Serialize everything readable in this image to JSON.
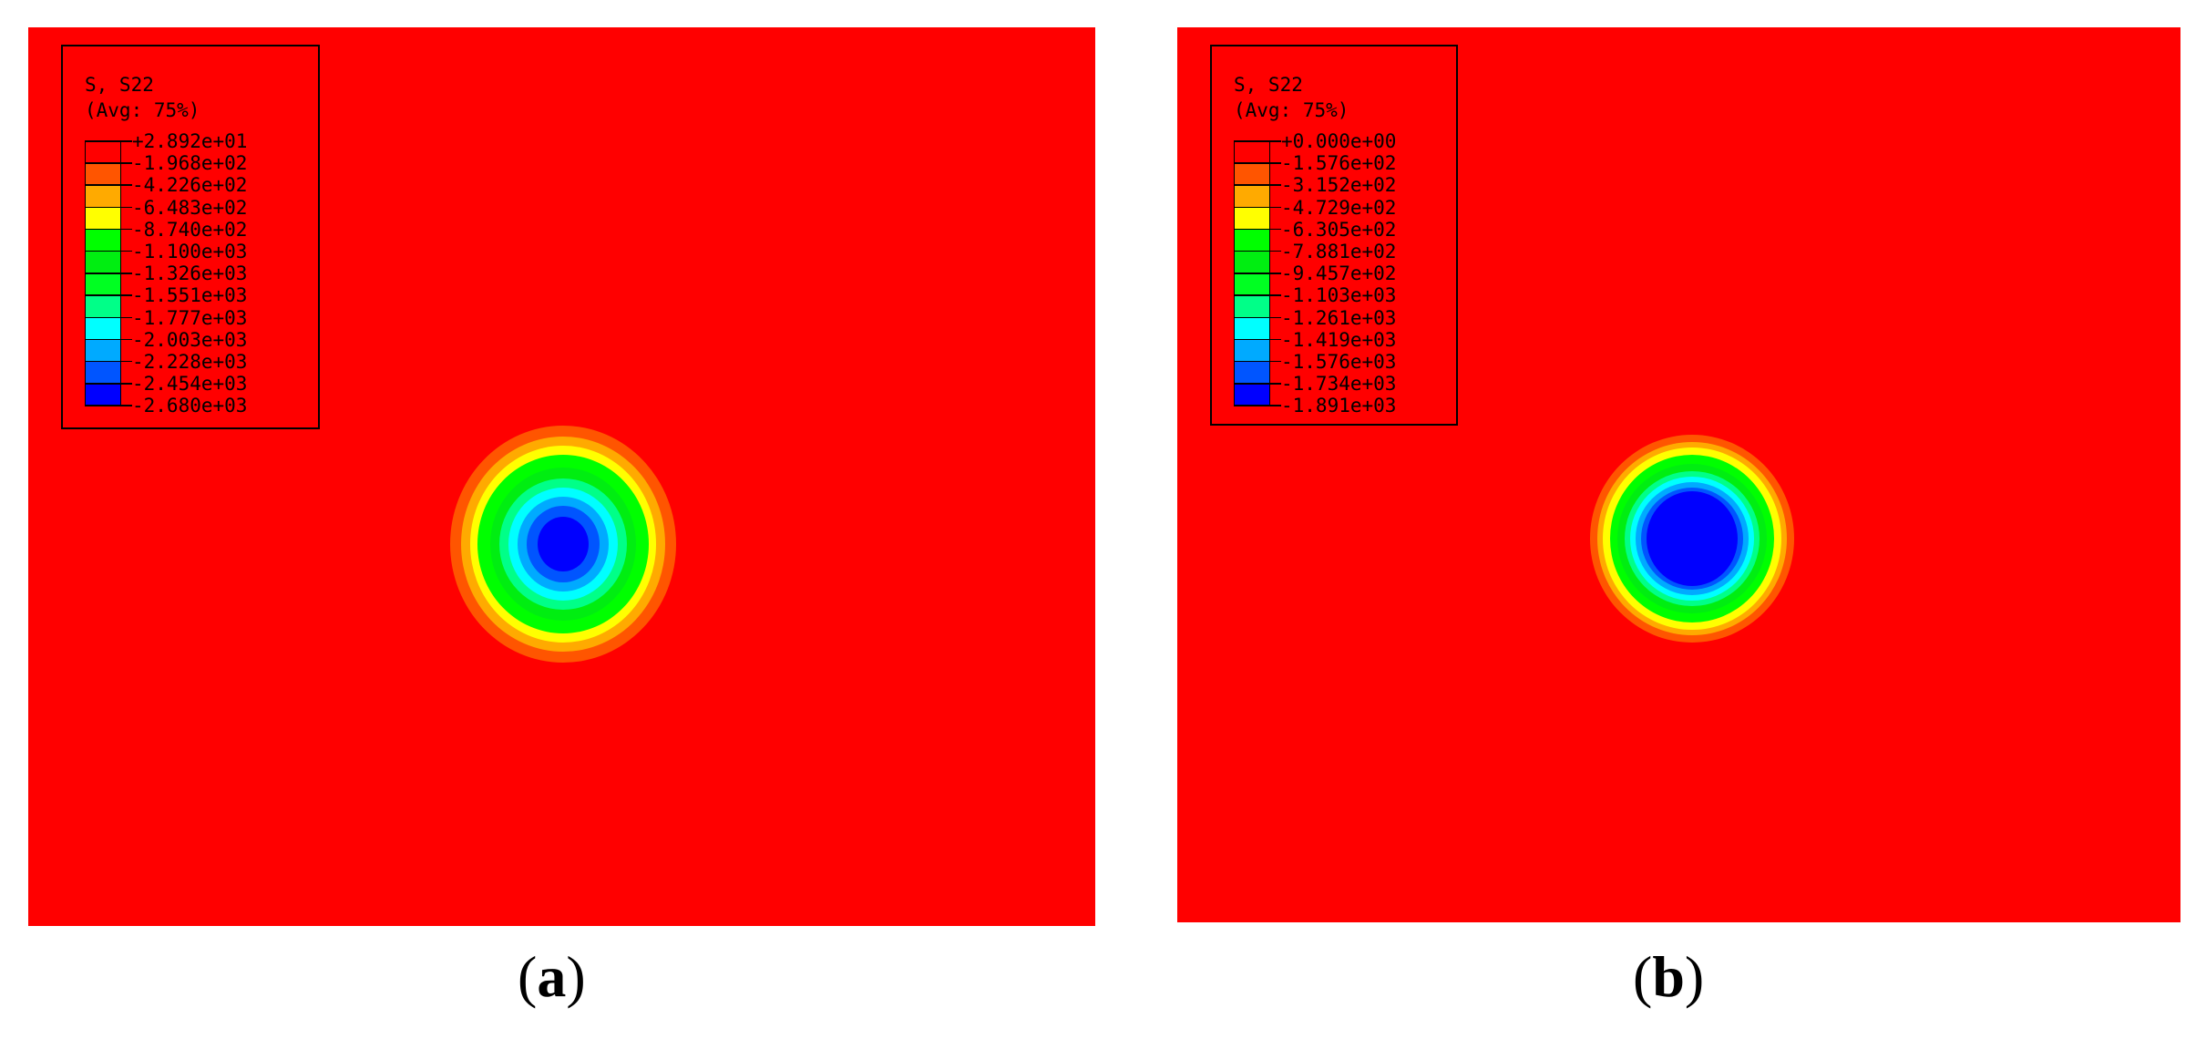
{
  "panels": [
    {
      "id": "a",
      "legend": {
        "title": "S, S22",
        "subtitle": "(Avg: 75%)",
        "labels": [
          "+2.892e+01",
          "-1.968e+02",
          "-4.226e+02",
          "-6.483e+02",
          "-8.740e+02",
          "-1.100e+03",
          "-1.326e+03",
          "-1.551e+03",
          "-1.777e+03",
          "-2.003e+03",
          "-2.228e+03",
          "-2.454e+03",
          "-2.680e+03"
        ],
        "colors": [
          "#ff0000",
          "#ff5500",
          "#ffaa00",
          "#ffff00",
          "#00ff00",
          "#00ee11",
          "#00ff22",
          "#00ff88",
          "#00ffff",
          "#00aaff",
          "#0055ff",
          "#0000ff"
        ]
      },
      "caption_label": "a"
    },
    {
      "id": "b",
      "legend": {
        "title": "S, S22",
        "subtitle": "(Avg: 75%)",
        "labels": [
          "+0.000e+00",
          "-1.576e+02",
          "-3.152e+02",
          "-4.729e+02",
          "-6.305e+02",
          "-7.881e+02",
          "-9.457e+02",
          "-1.103e+03",
          "-1.261e+03",
          "-1.419e+03",
          "-1.576e+03",
          "-1.734e+03",
          "-1.891e+03"
        ],
        "colors": [
          "#ff0000",
          "#ff5500",
          "#ffaa00",
          "#ffff00",
          "#00ff00",
          "#00ee11",
          "#00ff22",
          "#00ff88",
          "#00ffff",
          "#00aaff",
          "#0055ff",
          "#0000ff"
        ]
      },
      "caption_label": "b"
    }
  ],
  "contour_colors": {
    "red": "#ff0000",
    "orange_red": "#ff5500",
    "orange": "#ffaa00",
    "yellow": "#ffff00",
    "green": "#00ff00",
    "green2": "#00ee11",
    "mint": "#00ff88",
    "cyan": "#00ffff",
    "sky": "#00aaff",
    "blue_mid": "#0055ff",
    "blue": "#0000ff"
  }
}
